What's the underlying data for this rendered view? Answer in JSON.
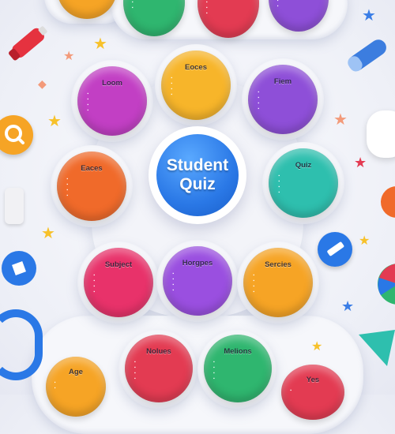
{
  "center": {
    "line1": "Student",
    "line2": "Quiz"
  },
  "bubbles": {
    "top_left": {
      "title": "",
      "items": [
        "",
        "",
        "",
        ""
      ]
    },
    "top_mid": {
      "title": "",
      "items": [
        "",
        "",
        "",
        ""
      ]
    },
    "top_right": {
      "title": "",
      "items": [
        "",
        "",
        "",
        ""
      ]
    },
    "loom": {
      "title": "Loom",
      "items": [
        "",
        "",
        "",
        ""
      ]
    },
    "eoces": {
      "title": "Eoces",
      "items": [
        "",
        "",
        "",
        ""
      ]
    },
    "fiem": {
      "title": "Fiem",
      "items": [
        "",
        "",
        "",
        ""
      ]
    },
    "eaces": {
      "title": "Eaces",
      "items": [
        "",
        "",
        "",
        ""
      ]
    },
    "quiz": {
      "title": "Quiz",
      "items": [
        "",
        "",
        "",
        ""
      ]
    },
    "subject": {
      "title": "Subject",
      "items": [
        "",
        "",
        "",
        ""
      ]
    },
    "horgpes": {
      "title": "Horgpes",
      "items": [
        "",
        "",
        "",
        ""
      ]
    },
    "sercies": {
      "title": "Sercies",
      "items": [
        "",
        "",
        "",
        ""
      ]
    },
    "age": {
      "title": "Age",
      "items": [
        "",
        "",
        "",
        ""
      ]
    },
    "nolues": {
      "title": "Nolues",
      "items": [
        "",
        "",
        "",
        ""
      ]
    },
    "melions": {
      "title": "Melions",
      "items": [
        "",
        "",
        "",
        ""
      ]
    },
    "yes": {
      "title": "Yes",
      "items": [
        "",
        "",
        "",
        ""
      ]
    }
  },
  "colors": {
    "orange": "#f6a425",
    "yellow": "#f7b52a",
    "purple": "#8e4fd8",
    "magenta": "#c23fc4",
    "red": "#e33b52",
    "green": "#2fb66f",
    "teal": "#2ebfae",
    "pink": "#e8326a",
    "blue": "#2a78e6",
    "orange_red": "#f06a2a"
  },
  "icons": [
    "search-icon",
    "ruler-icon",
    "pen-icon",
    "glue-icon",
    "eraser-icon",
    "magnet-icon",
    "pie-icon",
    "triangle-icon",
    "star-icon"
  ]
}
